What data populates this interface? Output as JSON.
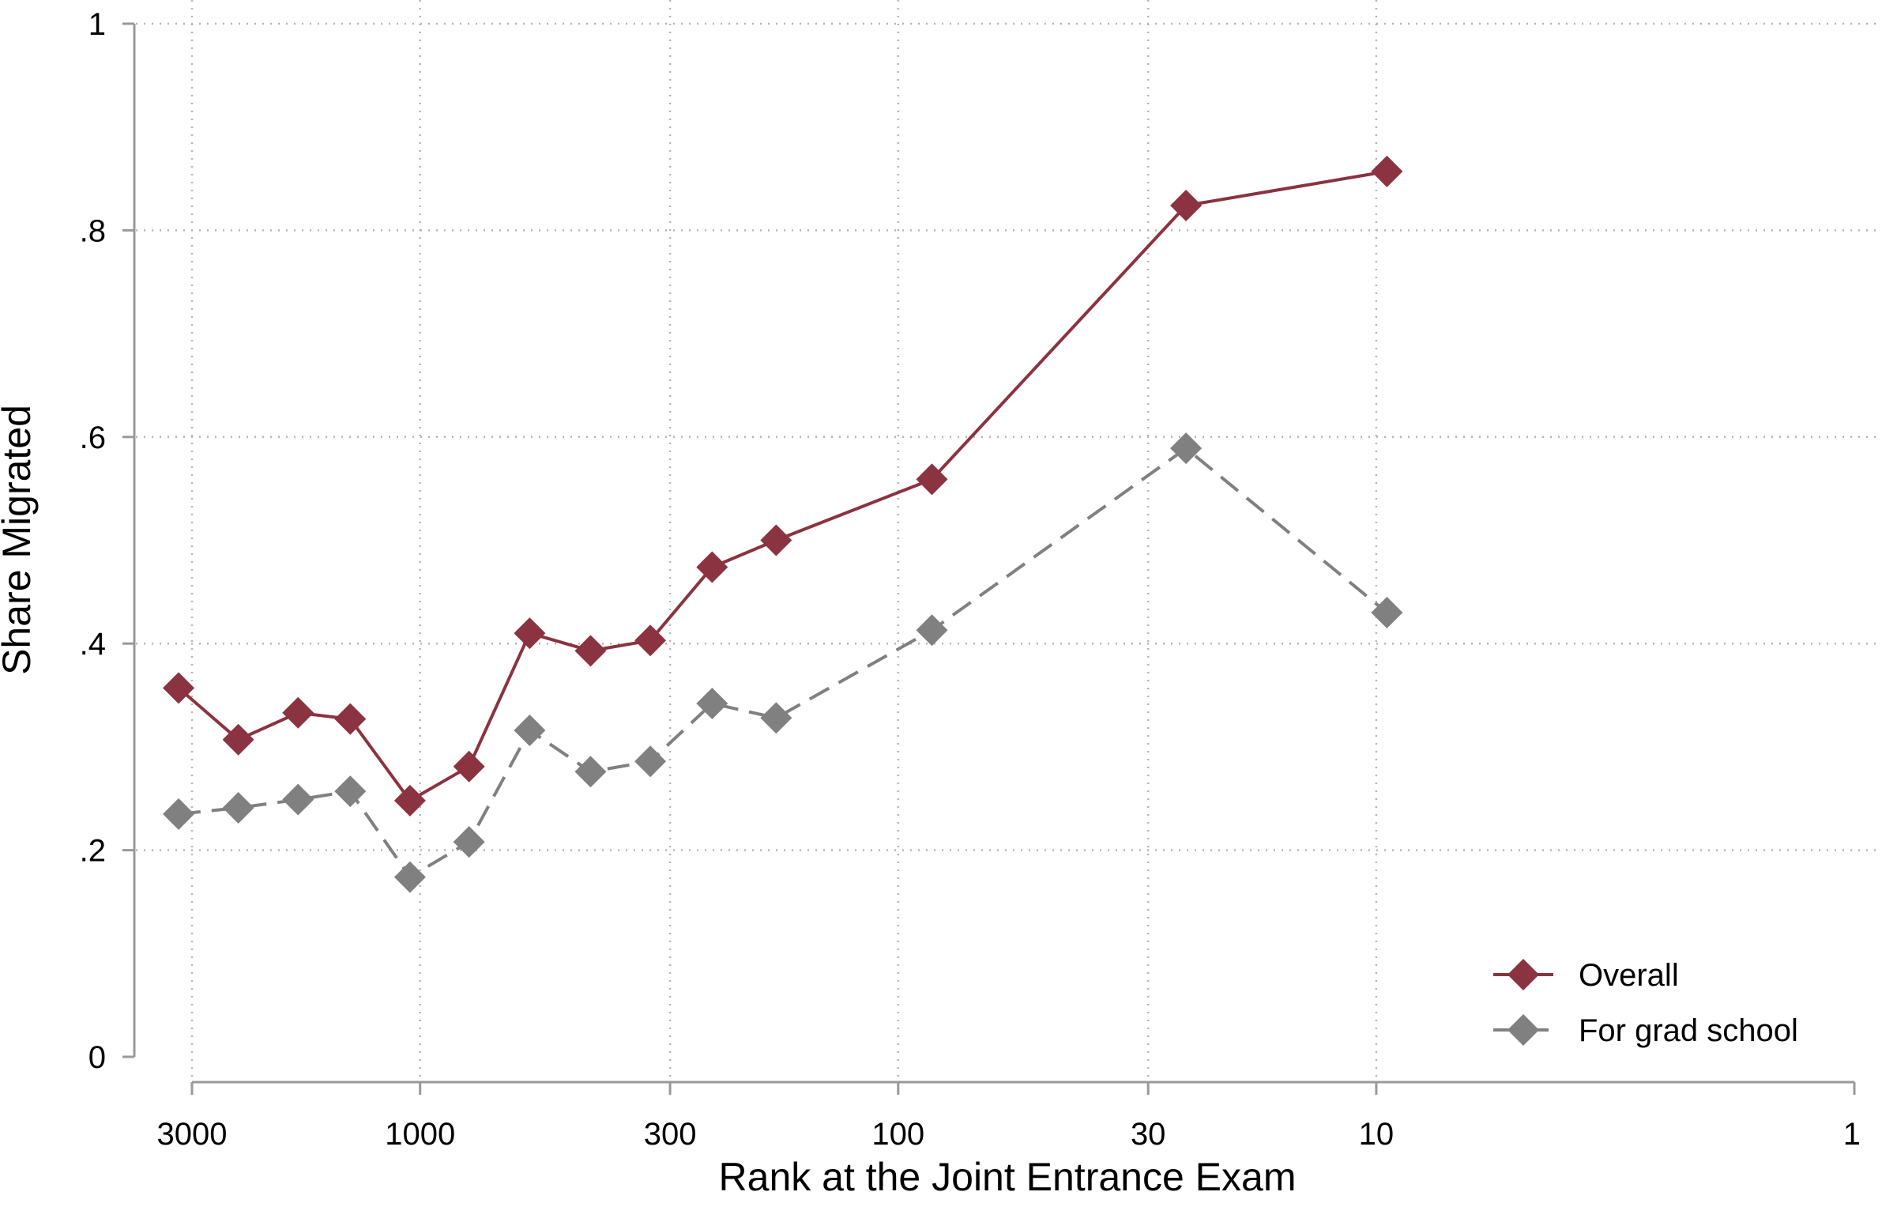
{
  "chart_data": {
    "type": "line",
    "xlabel": "Rank at the Joint Entrance Exam",
    "ylabel": "Share Migrated",
    "x_scale": "log",
    "x_reversed": true,
    "xlim": [
      3400,
      1
    ],
    "ylim": [
      0,
      1
    ],
    "xticks": [
      3000,
      1000,
      300,
      100,
      30,
      10,
      1
    ],
    "xtick_labels": [
      "3000",
      "1000",
      "300",
      "100",
      "30",
      "10",
      "1"
    ],
    "yticks": [
      0,
      0.2,
      0.4,
      0.6,
      0.8,
      1
    ],
    "ytick_labels": [
      "0",
      ".2",
      ".4",
      ".6",
      ".8",
      "1"
    ],
    "grid": true,
    "legend_position": "bottom-right",
    "x": [
      3200,
      2400,
      1800,
      1400,
      1050,
      790,
      590,
      440,
      330,
      245,
      180,
      85,
      25,
      9.5
    ],
    "series": [
      {
        "name": "Overall",
        "color": "#8b3340",
        "line_style": "solid",
        "marker": "diamond",
        "values": [
          0.357,
          0.307,
          0.333,
          0.327,
          0.248,
          0.281,
          0.41,
          0.393,
          0.403,
          0.474,
          0.5,
          0.559,
          0.824,
          0.857
        ]
      },
      {
        "name": "For grad school",
        "color": "#808080",
        "line_style": "dashed",
        "marker": "diamond",
        "values": [
          0.235,
          0.241,
          0.249,
          0.257,
          0.174,
          0.208,
          0.316,
          0.276,
          0.286,
          0.342,
          0.328,
          0.413,
          0.589,
          0.43
        ]
      }
    ]
  }
}
